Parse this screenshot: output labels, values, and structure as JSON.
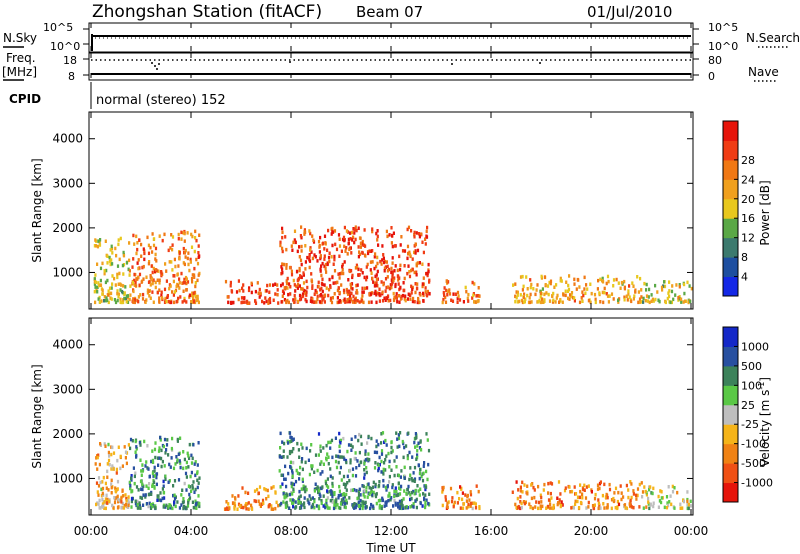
{
  "header": {
    "station": "Zhongshan Station (fitACF)",
    "beam": "Beam 07",
    "date": "01/Jul/2010"
  },
  "panel_labels": {
    "nsky": "N.Sky",
    "nsky_t1": "10^5",
    "nsky_t0": "10^0",
    "nsearch": "N.Search",
    "nsearch_t1": "10^5",
    "nsearch_t0": "10^0",
    "freq1": "Freq.",
    "freq2": "[MHz]",
    "freq_hi": "18",
    "freq_lo": "8",
    "nave": "Nave",
    "nave_hi": "80",
    "nave_lo": "0",
    "cpid": "CPID",
    "cpid_text": "normal (stereo) 152"
  },
  "colors": {
    "power": [
      "#1428e6",
      "#1e4fa0",
      "#3c7a6e",
      "#5aa846",
      "#e8c81e",
      "#f0a01e",
      "#f07814",
      "#f03c14",
      "#e6140a"
    ],
    "velocity": [
      "#e6140a",
      "#f05014",
      "#f08214",
      "#f5b419",
      "#bebebe",
      "#5ac846",
      "#3c825a",
      "#2850a0",
      "#1428c8"
    ]
  },
  "chart_data": [
    {
      "type": "heatmap",
      "quantity": "Power",
      "ylabel": "Slant Range [km]",
      "ylim": [
        180,
        4600
      ],
      "yticks": [
        "1000",
        "2000",
        "3000",
        "4000"
      ],
      "colorbar": {
        "label": "Power [dB]",
        "range": [
          0,
          36
        ],
        "ticks": [
          "4",
          "8",
          "12",
          "16",
          "20",
          "24",
          "28"
        ]
      },
      "x": [
        "00:00",
        "04:00",
        "08:00",
        "12:00",
        "16:00",
        "20:00",
        "00:00"
      ],
      "echo_regions": [
        {
          "t": [
            0.1,
            1.5
          ],
          "r": [
            300,
            1750
          ],
          "level": 4
        },
        {
          "t": [
            1.5,
            4.3
          ],
          "r": [
            300,
            1900
          ],
          "level": 6
        },
        {
          "t": [
            5.3,
            7.5
          ],
          "r": [
            280,
            800
          ],
          "level": 7
        },
        {
          "t": [
            7.5,
            13.5
          ],
          "r": [
            300,
            2000
          ],
          "level": 7
        },
        {
          "t": [
            14.0,
            15.5
          ],
          "r": [
            300,
            800
          ],
          "level": 6
        },
        {
          "t": [
            16.8,
            22.0
          ],
          "r": [
            300,
            900
          ],
          "level": 5
        },
        {
          "t": [
            22.0,
            24.0
          ],
          "r": [
            300,
            800
          ],
          "level": 4
        }
      ]
    },
    {
      "type": "heatmap",
      "quantity": "Velocity",
      "ylabel": "Slant Range [km]",
      "ylim": [
        180,
        4600
      ],
      "yticks": [
        "1000",
        "2000",
        "3000",
        "4000"
      ],
      "colorbar": {
        "label": "Velocity [m s^-1]",
        "ticks": [
          "1000",
          "500",
          "100",
          "25",
          "-25",
          "-100",
          "-500",
          "-1000"
        ]
      },
      "x": [
        "00:00",
        "04:00",
        "08:00",
        "12:00",
        "16:00",
        "20:00",
        "00:00"
      ],
      "xlabel": "Time UT",
      "echo_regions": [
        {
          "t": [
            0.1,
            1.5
          ],
          "r": [
            300,
            1750
          ],
          "level": 3
        },
        {
          "t": [
            1.5,
            4.3
          ],
          "r": [
            300,
            1900
          ],
          "level": 6
        },
        {
          "t": [
            5.3,
            7.5
          ],
          "r": [
            280,
            800
          ],
          "level": 2
        },
        {
          "t": [
            7.5,
            13.5
          ],
          "r": [
            300,
            2000
          ],
          "level": 6
        },
        {
          "t": [
            14.0,
            15.5
          ],
          "r": [
            300,
            800
          ],
          "level": 2
        },
        {
          "t": [
            16.8,
            22.0
          ],
          "r": [
            300,
            900
          ],
          "level": 2
        },
        {
          "t": [
            22.0,
            24.0
          ],
          "r": [
            300,
            800
          ],
          "level": 4
        }
      ]
    }
  ]
}
